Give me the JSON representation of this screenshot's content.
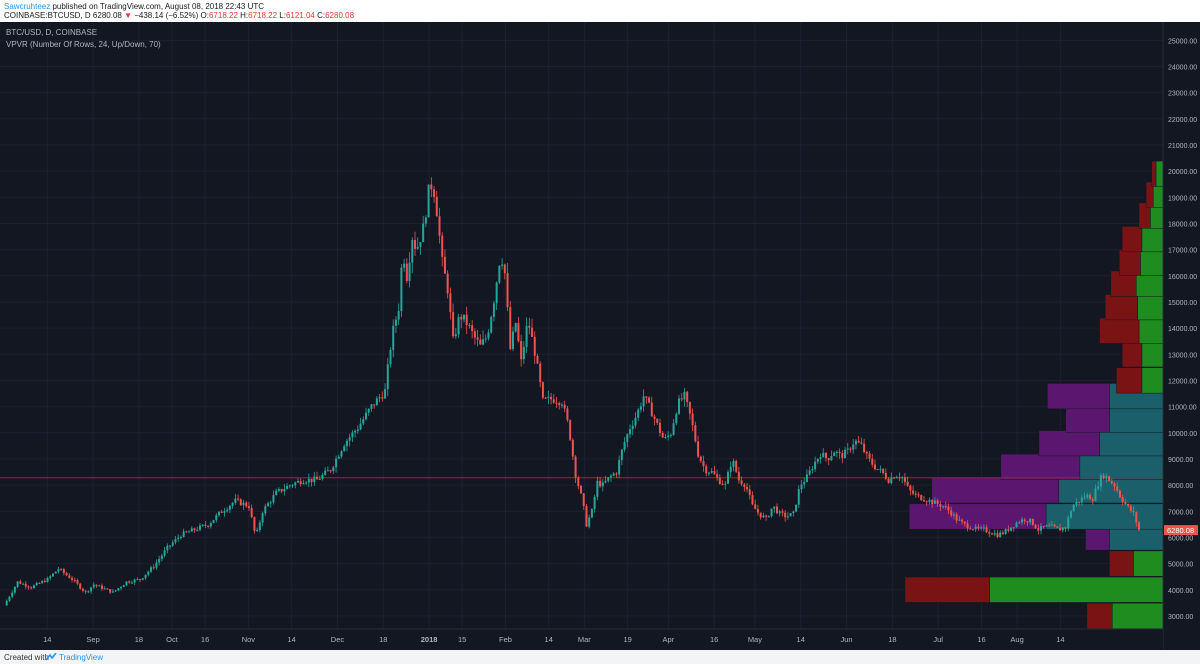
{
  "header": {
    "author": "Sawcruhteez",
    "published": " published on TradingView.com, August 08, 2018 22:43 UTC",
    "symbol_line": "COINBASE:BTCUSD, D",
    "last": "6280.08",
    "change": "−438.14 (−6.52%)",
    "open_label": "O:",
    "open": "6718.22",
    "high_label": "H:",
    "high": "6718.22",
    "low_label": "L:",
    "low": "6121.04",
    "close_label": "C:",
    "close": "6280.08"
  },
  "footer": {
    "created": "Created with",
    "brand": "TradingView"
  },
  "chart_data": {
    "type": "candlestick",
    "title": "BTC/USD, D, COINBASE",
    "indicator": "VPVR (Number Of Rows, 24, Up/Down, 70)",
    "price_label": "6280.08",
    "colors": {
      "up": "#26a69a",
      "down": "#ef5350",
      "background": "#131722",
      "reference_line": "#b71c1c"
    },
    "y_ticks": [
      3000,
      4000,
      5000,
      6000,
      7000,
      8000,
      9000,
      10000,
      11000,
      12000,
      13000,
      14000,
      15000,
      16000,
      17000,
      18000,
      19000,
      20000,
      21000,
      22000,
      23000,
      24000,
      25000
    ],
    "y_tick_labels": [
      "3000.00",
      "4000.00",
      "5000.00",
      "6000.00",
      "7000.00",
      "8000.00",
      "9000.00",
      "10000.00",
      "11000.00",
      "12000.00",
      "13000.00",
      "14000.00",
      "15000.00",
      "16000.00",
      "17000.00",
      "18000.00",
      "19000.00",
      "20000.00",
      "21000.00",
      "22000.00",
      "23000.00",
      "24000.00",
      "25000.00"
    ],
    "ylim": [
      2500,
      25700
    ],
    "horizontal_line": 8280,
    "x_labels": [
      "14",
      "Sep",
      "18",
      "Oct",
      "16",
      "Nov",
      "14",
      "Dec",
      "18",
      "2018",
      "15",
      "Feb",
      "14",
      "Mar",
      "19",
      "Apr",
      "16",
      "May",
      "14",
      "Jun",
      "18",
      "Jul",
      "16",
      "Aug",
      "14"
    ],
    "x_label_day_index": [
      17,
      35,
      53,
      66,
      79,
      96,
      113,
      131,
      149,
      167,
      180,
      197,
      214,
      228,
      245,
      261,
      279,
      295,
      313,
      331,
      349,
      367,
      384,
      398,
      415
    ],
    "price_path": [
      [
        0,
        3400
      ],
      [
        10,
        4300
      ],
      [
        20,
        4100
      ],
      [
        32,
        4400
      ],
      [
        40,
        4800
      ],
      [
        50,
        4400
      ],
      [
        60,
        3900
      ],
      [
        66,
        4200
      ],
      [
        80,
        3900
      ],
      [
        90,
        4300
      ],
      [
        100,
        4400
      ],
      [
        110,
        4900
      ],
      [
        120,
        5600
      ],
      [
        130,
        6100
      ],
      [
        140,
        6300
      ],
      [
        150,
        6500
      ],
      [
        160,
        7000
      ],
      [
        170,
        7400
      ],
      [
        180,
        7200
      ],
      [
        185,
        6000
      ],
      [
        190,
        7000
      ],
      [
        200,
        7700
      ],
      [
        210,
        8000
      ],
      [
        220,
        8200
      ],
      [
        230,
        8200
      ],
      [
        240,
        8600
      ],
      [
        250,
        9600
      ],
      [
        260,
        10200
      ],
      [
        270,
        11000
      ],
      [
        280,
        11600
      ],
      [
        285,
        13700
      ],
      [
        290,
        14800
      ],
      [
        293,
        17000
      ],
      [
        296,
        16000
      ],
      [
        300,
        17500
      ],
      [
        303,
        17000
      ],
      [
        308,
        17800
      ],
      [
        312,
        19200
      ],
      [
        315,
        19600
      ],
      [
        318,
        18500
      ],
      [
        322,
        16500
      ],
      [
        326,
        15500
      ],
      [
        330,
        13500
      ],
      [
        335,
        14500
      ],
      [
        340,
        14200
      ],
      [
        345,
        13700
      ],
      [
        350,
        13300
      ],
      [
        355,
        13700
      ],
      [
        360,
        15100
      ],
      [
        365,
        16900
      ],
      [
        368,
        16100
      ],
      [
        372,
        13200
      ],
      [
        376,
        14200
      ],
      [
        380,
        12700
      ],
      [
        385,
        14300
      ],
      [
        390,
        13100
      ],
      [
        396,
        11200
      ],
      [
        403,
        11300
      ],
      [
        410,
        11200
      ],
      [
        415,
        10200
      ],
      [
        420,
        8400
      ],
      [
        425,
        7400
      ],
      [
        428,
        6500
      ],
      [
        432,
        7000
      ],
      [
        436,
        8100
      ],
      [
        440,
        8000
      ],
      [
        445,
        8300
      ],
      [
        450,
        8500
      ],
      [
        455,
        9500
      ],
      [
        460,
        10200
      ],
      [
        465,
        10700
      ],
      [
        470,
        11400
      ],
      [
        475,
        10900
      ],
      [
        480,
        10300
      ],
      [
        485,
        9700
      ],
      [
        490,
        10000
      ],
      [
        495,
        11100
      ],
      [
        500,
        11400
      ],
      [
        505,
        10500
      ],
      [
        510,
        9200
      ],
      [
        515,
        8600
      ],
      [
        520,
        8500
      ],
      [
        525,
        8200
      ],
      [
        530,
        8000
      ],
      [
        535,
        9000
      ],
      [
        540,
        8200
      ],
      [
        545,
        8000
      ],
      [
        550,
        7200
      ],
      [
        555,
        6900
      ],
      [
        560,
        6700
      ],
      [
        565,
        7200
      ],
      [
        570,
        6900
      ],
      [
        575,
        6800
      ],
      [
        580,
        6900
      ],
      [
        585,
        8000
      ],
      [
        590,
        8300
      ],
      [
        595,
        8800
      ],
      [
        600,
        9200
      ],
      [
        605,
        9000
      ],
      [
        610,
        9300
      ],
      [
        615,
        9100
      ],
      [
        620,
        9300
      ],
      [
        625,
        9700
      ],
      [
        630,
        9500
      ],
      [
        635,
        9000
      ],
      [
        640,
        8700
      ],
      [
        645,
        8500
      ],
      [
        650,
        8200
      ],
      [
        655,
        8400
      ],
      [
        660,
        8300
      ],
      [
        665,
        7800
      ],
      [
        670,
        7600
      ],
      [
        675,
        7500
      ],
      [
        680,
        7400
      ],
      [
        685,
        7300
      ],
      [
        690,
        7200
      ],
      [
        695,
        7000
      ],
      [
        700,
        6700
      ],
      [
        705,
        6500
      ],
      [
        710,
        6400
      ],
      [
        715,
        6300
      ],
      [
        720,
        6300
      ],
      [
        725,
        6200
      ],
      [
        730,
        6100
      ],
      [
        735,
        6200
      ],
      [
        740,
        6400
      ],
      [
        745,
        6600
      ],
      [
        750,
        6700
      ],
      [
        755,
        6600
      ],
      [
        760,
        6300
      ],
      [
        765,
        6400
      ],
      [
        770,
        6400
      ],
      [
        775,
        6300
      ],
      [
        780,
        6400
      ],
      [
        785,
        7200
      ],
      [
        790,
        7400
      ],
      [
        795,
        7600
      ],
      [
        800,
        7500
      ],
      [
        805,
        8200
      ],
      [
        808,
        8400
      ],
      [
        812,
        8200
      ],
      [
        816,
        8000
      ],
      [
        820,
        7600
      ],
      [
        825,
        7200
      ],
      [
        830,
        6900
      ],
      [
        834,
        6300
      ]
    ],
    "vpvr": [
      {
        "price": 3000,
        "up": 3600,
        "down": 1800
      },
      {
        "price": 4000,
        "up": 12300,
        "down": 6000
      },
      {
        "price": 5000,
        "up": 2100,
        "down": 1700
      },
      {
        "price": 6000,
        "up": 3800,
        "down": 1700
      },
      {
        "price": 6800,
        "up": 8300,
        "down": 9700
      },
      {
        "price": 7800,
        "up": 7400,
        "down": 9000
      },
      {
        "price": 8700,
        "up": 5900,
        "down": 5600
      },
      {
        "price": 9600,
        "up": 4500,
        "down": 4300
      },
      {
        "price": 10500,
        "up": 3800,
        "down": 3100
      },
      {
        "price": 11400,
        "up": 3800,
        "down": 4400
      },
      {
        "price": 12000,
        "up": 1500,
        "down": 1800
      },
      {
        "price": 13000,
        "up": 1500,
        "down": 1400
      },
      {
        "price": 13900,
        "up": 1700,
        "down": 2800
      },
      {
        "price": 14800,
        "up": 1800,
        "down": 2300
      },
      {
        "price": 15700,
        "up": 1900,
        "down": 1800
      },
      {
        "price": 16500,
        "up": 1600,
        "down": 1500
      },
      {
        "price": 17400,
        "up": 1500,
        "down": 1400
      },
      {
        "price": 18300,
        "up": 900,
        "down": 800
      },
      {
        "price": 19100,
        "up": 700,
        "down": 500
      },
      {
        "price": 19900,
        "up": 500,
        "down": 300
      }
    ]
  }
}
